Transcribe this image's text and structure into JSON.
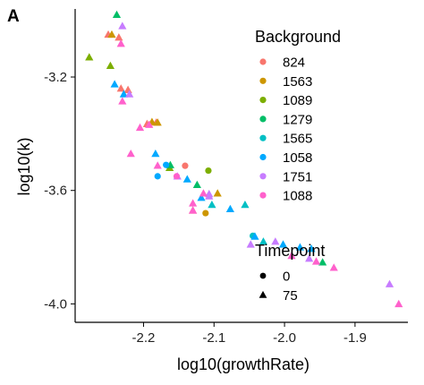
{
  "panel_tag": "A",
  "chart_data": {
    "type": "scatter",
    "xlabel": "log10(growthRate)",
    "ylabel": "log10(k)",
    "xlim": [
      -2.297,
      -1.825
    ],
    "ylim": [
      -4.065,
      -2.96
    ],
    "xticks": [
      -2.2,
      -2.1,
      -2.0,
      -1.9
    ],
    "xtick_labels": [
      "-2.2",
      "-2.1",
      "-2.0",
      "-1.9"
    ],
    "yticks": [
      -3.2,
      -3.6,
      -4.0
    ],
    "ytick_labels": [
      "-3.2",
      "-3.6",
      "-4.0"
    ],
    "grid": false,
    "legends": [
      {
        "title": "Background",
        "placement": "top-right",
        "entries": [
          {
            "label": "824",
            "color": "#F8766D"
          },
          {
            "label": "1563",
            "color": "#CD9600"
          },
          {
            "label": "1089",
            "color": "#7CAE00"
          },
          {
            "label": "1279",
            "color": "#00BE67"
          },
          {
            "label": "1565",
            "color": "#00BFC4"
          },
          {
            "label": "1058",
            "color": "#00A9FF"
          },
          {
            "label": "1751",
            "color": "#C77CFF"
          },
          {
            "label": "1088",
            "color": "#FF61CC"
          }
        ]
      },
      {
        "title": "Timepoint",
        "placement": "right",
        "entries": [
          {
            "label": "0",
            "shape": "circle"
          },
          {
            "label": "75",
            "shape": "triangle"
          }
        ]
      }
    ],
    "series": [
      {
        "name": "824",
        "color": "#F8766D",
        "points": [
          {
            "x": -2.25,
            "y": -3.05,
            "shape": "triangle"
          },
          {
            "x": -2.235,
            "y": -3.06,
            "shape": "triangle"
          },
          {
            "x": -2.232,
            "y": -3.24,
            "shape": "triangle"
          },
          {
            "x": -2.222,
            "y": -3.245,
            "shape": "triangle"
          },
          {
            "x": -2.195,
            "y": -3.365,
            "shape": "triangle"
          },
          {
            "x": -2.182,
            "y": -3.36,
            "shape": "triangle"
          },
          {
            "x": -2.141,
            "y": -3.513,
            "shape": "circle"
          },
          {
            "x": -2.13,
            "y": -3.67,
            "shape": "triangle"
          }
        ]
      },
      {
        "name": "1563",
        "color": "#CD9600",
        "points": [
          {
            "x": -2.245,
            "y": -3.05,
            "shape": "triangle"
          },
          {
            "x": -2.188,
            "y": -3.358,
            "shape": "triangle"
          },
          {
            "x": -2.18,
            "y": -3.36,
            "shape": "triangle"
          },
          {
            "x": -2.112,
            "y": -3.68,
            "shape": "circle"
          },
          {
            "x": -2.095,
            "y": -3.61,
            "shape": "triangle"
          }
        ]
      },
      {
        "name": "1089",
        "color": "#7CAE00",
        "points": [
          {
            "x": -2.277,
            "y": -3.13,
            "shape": "triangle"
          },
          {
            "x": -2.247,
            "y": -3.16,
            "shape": "triangle"
          },
          {
            "x": -2.163,
            "y": -3.52,
            "shape": "triangle"
          },
          {
            "x": -2.108,
            "y": -3.53,
            "shape": "circle"
          }
        ]
      },
      {
        "name": "1279",
        "color": "#00BE67",
        "points": [
          {
            "x": -2.238,
            "y": -2.98,
            "shape": "triangle"
          },
          {
            "x": -2.162,
            "y": -3.51,
            "shape": "triangle"
          },
          {
            "x": -2.124,
            "y": -3.58,
            "shape": "triangle"
          },
          {
            "x": -1.946,
            "y": -3.853,
            "shape": "triangle"
          }
        ]
      },
      {
        "name": "1565",
        "color": "#00BFC4",
        "points": [
          {
            "x": -2.103,
            "y": -3.65,
            "shape": "triangle"
          },
          {
            "x": -2.056,
            "y": -3.65,
            "shape": "triangle"
          },
          {
            "x": -2.045,
            "y": -3.76,
            "shape": "circle"
          },
          {
            "x": -2.03,
            "y": -3.78,
            "shape": "triangle"
          }
        ]
      },
      {
        "name": "1058",
        "color": "#00A9FF",
        "points": [
          {
            "x": -2.241,
            "y": -3.225,
            "shape": "triangle"
          },
          {
            "x": -2.228,
            "y": -3.26,
            "shape": "triangle"
          },
          {
            "x": -2.183,
            "y": -3.47,
            "shape": "triangle"
          },
          {
            "x": -2.168,
            "y": -3.51,
            "shape": "circle"
          },
          {
            "x": -2.18,
            "y": -3.55,
            "shape": "circle"
          },
          {
            "x": -2.138,
            "y": -3.56,
            "shape": "triangle"
          },
          {
            "x": -2.118,
            "y": -3.625,
            "shape": "triangle"
          },
          {
            "x": -2.077,
            "y": -3.665,
            "shape": "triangle"
          },
          {
            "x": -2.042,
            "y": -3.762,
            "shape": "triangle"
          },
          {
            "x": -2.002,
            "y": -3.79,
            "shape": "triangle"
          },
          {
            "x": -1.978,
            "y": -3.8,
            "shape": "triangle"
          },
          {
            "x": -1.962,
            "y": -3.805,
            "shape": "triangle"
          }
        ]
      },
      {
        "name": "1751",
        "color": "#C77CFF",
        "points": [
          {
            "x": -2.23,
            "y": -3.02,
            "shape": "triangle"
          },
          {
            "x": -2.22,
            "y": -3.26,
            "shape": "triangle"
          },
          {
            "x": -2.152,
            "y": -3.55,
            "shape": "triangle"
          },
          {
            "x": -2.107,
            "y": -3.612,
            "shape": "triangle"
          },
          {
            "x": -2.107,
            "y": -3.62,
            "shape": "triangle"
          },
          {
            "x": -2.048,
            "y": -3.79,
            "shape": "triangle"
          },
          {
            "x": -2.013,
            "y": -3.78,
            "shape": "triangle"
          },
          {
            "x": -1.965,
            "y": -3.84,
            "shape": "triangle"
          },
          {
            "x": -1.851,
            "y": -3.93,
            "shape": "triangle"
          }
        ]
      },
      {
        "name": "1088",
        "color": "#FF61CC",
        "points": [
          {
            "x": -2.232,
            "y": -3.082,
            "shape": "triangle"
          },
          {
            "x": -2.23,
            "y": -3.285,
            "shape": "triangle"
          },
          {
            "x": -2.218,
            "y": -3.47,
            "shape": "triangle"
          },
          {
            "x": -2.205,
            "y": -3.378,
            "shape": "triangle"
          },
          {
            "x": -2.192,
            "y": -3.368,
            "shape": "triangle"
          },
          {
            "x": -2.18,
            "y": -3.512,
            "shape": "triangle"
          },
          {
            "x": -2.153,
            "y": -3.55,
            "shape": "circle"
          },
          {
            "x": -2.13,
            "y": -3.645,
            "shape": "triangle"
          },
          {
            "x": -2.13,
            "y": -3.67,
            "shape": "triangle"
          },
          {
            "x": -2.115,
            "y": -3.61,
            "shape": "triangle"
          },
          {
            "x": -1.99,
            "y": -3.83,
            "shape": "triangle"
          },
          {
            "x": -1.955,
            "y": -3.85,
            "shape": "triangle"
          },
          {
            "x": -1.93,
            "y": -3.872,
            "shape": "triangle"
          },
          {
            "x": -1.838,
            "y": -4.0,
            "shape": "triangle"
          }
        ]
      }
    ]
  }
}
